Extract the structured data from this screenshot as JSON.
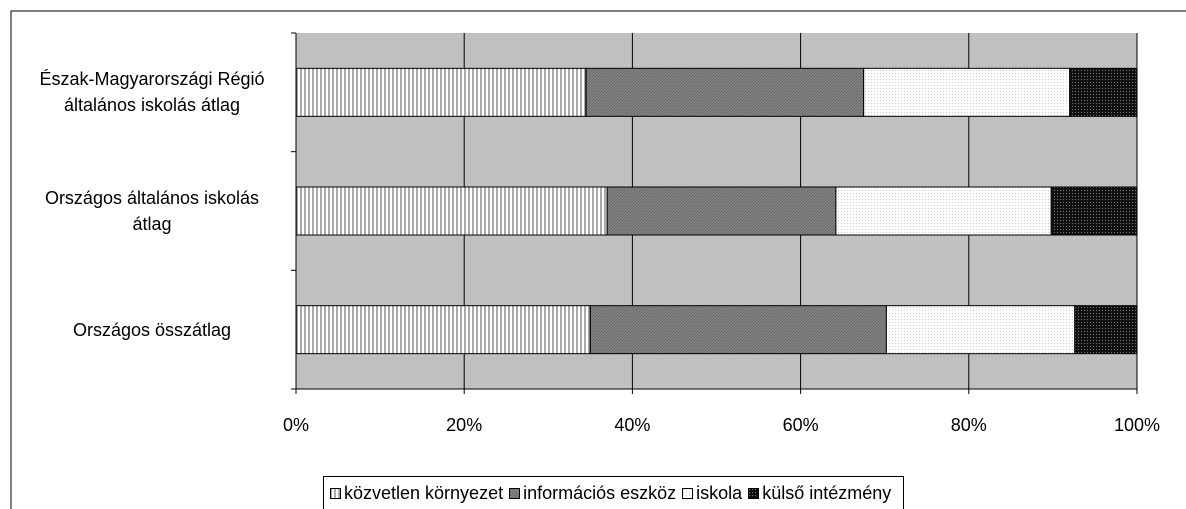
{
  "chart_data": {
    "type": "stacked_barh",
    "categories": [
      "Észak-Magyarországi Régió általános iskolás átlag",
      "Országos általános iskolás átlag",
      "Országos összátlag"
    ],
    "series": [
      {
        "name": "közvetlen környezet",
        "color": "#ffffff",
        "values": [
          34.5,
          37,
          35
        ]
      },
      {
        "name": "információs eszköz",
        "color": "#808080",
        "values": [
          33,
          27.2,
          35.2
        ]
      },
      {
        "name": "iskola",
        "color": "#ffffff",
        "values": [
          24.5,
          25.6,
          22.4
        ]
      },
      {
        "name": "külső intézmény",
        "color": "#000000",
        "values": [
          8,
          10.2,
          7.4
        ]
      }
    ],
    "xlim": [
      0,
      100
    ],
    "xticks": [
      {
        "value": 0,
        "label": "0%"
      },
      {
        "value": 20,
        "label": "20%"
      },
      {
        "value": 40,
        "label": "40%"
      },
      {
        "value": 60,
        "label": "60%"
      },
      {
        "value": 80,
        "label": "80%"
      },
      {
        "value": 100,
        "label": "100%"
      }
    ],
    "grid": true,
    "legend": "bottom"
  }
}
